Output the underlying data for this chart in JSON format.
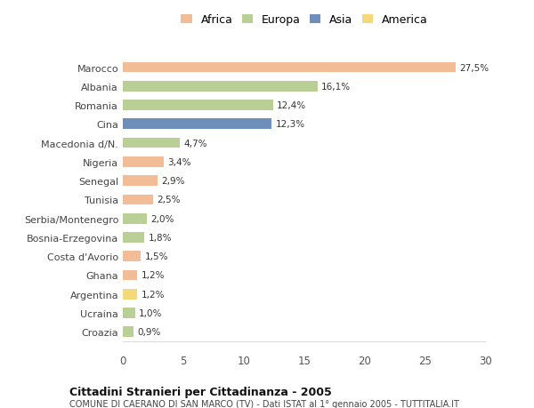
{
  "categories": [
    "Marocco",
    "Albania",
    "Romania",
    "Cina",
    "Macedonia d/N.",
    "Nigeria",
    "Senegal",
    "Tunisia",
    "Serbia/Montenegro",
    "Bosnia-Erzegovina",
    "Costa d'Avorio",
    "Ghana",
    "Argentina",
    "Ucraina",
    "Croazia"
  ],
  "values": [
    27.5,
    16.1,
    12.4,
    12.3,
    4.7,
    3.4,
    2.9,
    2.5,
    2.0,
    1.8,
    1.5,
    1.2,
    1.2,
    1.0,
    0.9
  ],
  "labels": [
    "27,5%",
    "16,1%",
    "12,4%",
    "12,3%",
    "4,7%",
    "3,4%",
    "2,9%",
    "2,5%",
    "2,0%",
    "1,8%",
    "1,5%",
    "1,2%",
    "1,2%",
    "1,0%",
    "0,9%"
  ],
  "colors": [
    "#F2BC96",
    "#BACF96",
    "#BACF96",
    "#6E8FBA",
    "#BACF96",
    "#F2BC96",
    "#F2BC96",
    "#F2BC96",
    "#BACF96",
    "#BACF96",
    "#F2BC96",
    "#F2BC96",
    "#F5D878",
    "#BACF96",
    "#BACF96"
  ],
  "legend_labels": [
    "Africa",
    "Europa",
    "Asia",
    "America"
  ],
  "legend_colors": [
    "#F2BC96",
    "#BACF96",
    "#6E8FBA",
    "#F5D878"
  ],
  "title": "Cittadini Stranieri per Cittadinanza - 2005",
  "subtitle": "COMUNE DI CAERANO DI SAN MARCO (TV) - Dati ISTAT al 1° gennaio 2005 - TUTTITALIA.IT",
  "xlim": [
    0,
    30
  ],
  "xticks": [
    0,
    5,
    10,
    15,
    20,
    25,
    30
  ],
  "bg_color": "#ffffff",
  "bar_height": 0.55
}
